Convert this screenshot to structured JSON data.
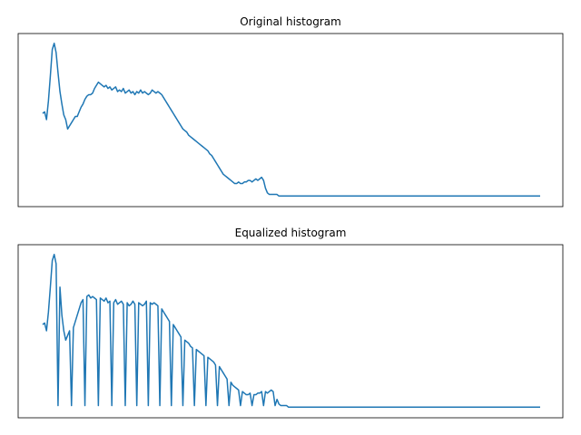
{
  "colors": {
    "line": "#1f77b4",
    "frame": "#000000",
    "background": "#ffffff"
  },
  "chart_data": [
    {
      "type": "line",
      "title": "Original histogram",
      "xlabel": "",
      "ylabel": "",
      "xlim": [
        0,
        255
      ],
      "ylim": [
        0,
        1.0
      ],
      "grid": false,
      "axes_ticks": false,
      "x_step": 4,
      "series": [
        {
          "values": [
            0.54,
            0.55,
            0.5,
            0.62,
            0.78,
            0.95,
            0.99,
            0.93,
            0.8,
            0.68,
            0.6,
            0.53,
            0.5,
            0.44,
            0.46,
            0.48,
            0.5,
            0.52,
            0.52,
            0.55,
            0.58,
            0.6,
            0.63,
            0.65,
            0.66,
            0.66,
            0.67,
            0.7,
            0.72,
            0.74,
            0.73,
            0.72,
            0.71,
            0.72,
            0.7,
            0.71,
            0.69,
            0.7,
            0.71,
            0.68,
            0.69,
            0.68,
            0.7,
            0.67,
            0.68,
            0.69,
            0.67,
            0.68,
            0.66,
            0.68,
            0.67,
            0.69,
            0.67,
            0.68,
            0.67,
            0.66,
            0.67,
            0.69,
            0.68,
            0.67,
            0.68,
            0.67,
            0.66,
            0.64,
            0.62,
            0.6,
            0.58,
            0.56,
            0.54,
            0.52,
            0.5,
            0.48,
            0.46,
            0.44,
            0.43,
            0.42,
            0.4,
            0.39,
            0.38,
            0.37,
            0.36,
            0.35,
            0.34,
            0.33,
            0.32,
            0.31,
            0.3,
            0.28,
            0.27,
            0.25,
            0.23,
            0.21,
            0.19,
            0.17,
            0.15,
            0.14,
            0.13,
            0.12,
            0.11,
            0.1,
            0.09,
            0.09,
            0.1,
            0.09,
            0.09,
            0.1,
            0.1,
            0.11,
            0.11,
            0.1,
            0.11,
            0.12,
            0.11,
            0.12,
            0.13,
            0.11,
            0.06,
            0.03,
            0.02,
            0.02,
            0.02,
            0.02,
            0.02,
            0.01,
            0.01,
            0.01,
            0.01,
            0.01,
            0.01,
            0.01,
            0.01,
            0.01,
            0.01,
            0.01,
            0.01,
            0.01,
            0.01,
            0.01,
            0.01,
            0.01,
            0.01,
            0.01,
            0.01,
            0.01,
            0.01,
            0.01,
            0.01,
            0.01,
            0.01,
            0.01,
            0.01,
            0.01,
            0.01,
            0.01,
            0.01,
            0.01,
            0.01,
            0.01,
            0.01,
            0.01,
            0.01,
            0.01,
            0.01,
            0.01,
            0.01,
            0.01,
            0.01,
            0.01,
            0.01,
            0.01,
            0.01,
            0.01,
            0.01,
            0.01,
            0.01,
            0.01,
            0.01,
            0.01,
            0.01,
            0.01,
            0.01,
            0.01,
            0.01,
            0.01,
            0.01,
            0.01,
            0.01,
            0.01,
            0.01,
            0.01,
            0.01,
            0.01,
            0.01,
            0.01,
            0.01,
            0.01,
            0.01,
            0.01,
            0.01,
            0.01,
            0.01,
            0.01,
            0.01,
            0.01,
            0.01,
            0.01,
            0.01,
            0.01,
            0.01,
            0.01,
            0.01,
            0.01,
            0.01,
            0.01,
            0.01,
            0.01,
            0.01,
            0.01,
            0.01,
            0.01,
            0.01,
            0.01,
            0.01,
            0.01,
            0.01,
            0.01,
            0.01,
            0.01,
            0.01,
            0.01,
            0.01,
            0.01,
            0.01,
            0.01,
            0.01,
            0.01,
            0.01,
            0.01,
            0.01,
            0.01,
            0.01,
            0.01,
            0.01,
            0.01,
            0.01,
            0.01,
            0.01,
            0.01,
            0.01,
            0.01,
            0.01,
            0.01,
            0.01,
            0.01,
            0.01,
            0.01,
            0.01,
            0.01,
            0.01,
            0.01
          ]
        }
      ]
    },
    {
      "type": "line",
      "title": "Equalized histogram",
      "xlabel": "",
      "ylabel": "",
      "xlim": [
        0,
        255
      ],
      "ylim": [
        0,
        1.0
      ],
      "grid": false,
      "axes_ticks": false,
      "x_step": 4,
      "series": [
        {
          "values": [
            0.54,
            0.55,
            0.5,
            0.62,
            0.78,
            0.95,
            0.99,
            0.93,
            0.02,
            0.78,
            0.6,
            0.5,
            0.44,
            0.47,
            0.5,
            0.02,
            0.52,
            0.56,
            0.6,
            0.64,
            0.68,
            0.7,
            0.02,
            0.72,
            0.73,
            0.71,
            0.72,
            0.71,
            0.7,
            0.02,
            0.71,
            0.7,
            0.69,
            0.71,
            0.68,
            0.69,
            0.02,
            0.68,
            0.7,
            0.67,
            0.68,
            0.69,
            0.67,
            0.02,
            0.68,
            0.66,
            0.67,
            0.69,
            0.67,
            0.02,
            0.68,
            0.67,
            0.66,
            0.67,
            0.69,
            0.02,
            0.68,
            0.67,
            0.68,
            0.67,
            0.66,
            0.02,
            0.64,
            0.62,
            0.6,
            0.58,
            0.56,
            0.02,
            0.54,
            0.52,
            0.5,
            0.48,
            0.46,
            0.02,
            0.44,
            0.43,
            0.42,
            0.4,
            0.39,
            0.02,
            0.38,
            0.37,
            0.36,
            0.35,
            0.34,
            0.02,
            0.33,
            0.32,
            0.31,
            0.3,
            0.28,
            0.02,
            0.27,
            0.25,
            0.23,
            0.21,
            0.19,
            0.02,
            0.17,
            0.15,
            0.14,
            0.13,
            0.12,
            0.02,
            0.11,
            0.1,
            0.09,
            0.09,
            0.1,
            0.02,
            0.09,
            0.09,
            0.1,
            0.1,
            0.11,
            0.02,
            0.11,
            0.1,
            0.11,
            0.12,
            0.11,
            0.02,
            0.06,
            0.03,
            0.02,
            0.02,
            0.02,
            0.02,
            0.01,
            0.01,
            0.01,
            0.01,
            0.01,
            0.01,
            0.01,
            0.01,
            0.01,
            0.01,
            0.01,
            0.01,
            0.01,
            0.01,
            0.01,
            0.01,
            0.01,
            0.01,
            0.01,
            0.01,
            0.01,
            0.01,
            0.01,
            0.01,
            0.01,
            0.01,
            0.01,
            0.01,
            0.01,
            0.01,
            0.01,
            0.01,
            0.01,
            0.01,
            0.01,
            0.01,
            0.01,
            0.01,
            0.01,
            0.01,
            0.01,
            0.01,
            0.01,
            0.01,
            0.01,
            0.01,
            0.01,
            0.01,
            0.01,
            0.01,
            0.01,
            0.01,
            0.01,
            0.01,
            0.01,
            0.01,
            0.01,
            0.01,
            0.01,
            0.01,
            0.01,
            0.01,
            0.01,
            0.01,
            0.01,
            0.01,
            0.01,
            0.01,
            0.01,
            0.01,
            0.01,
            0.01,
            0.01,
            0.01,
            0.01,
            0.01,
            0.01,
            0.01,
            0.01,
            0.01,
            0.01,
            0.01,
            0.01,
            0.01,
            0.01,
            0.01,
            0.01,
            0.01,
            0.01,
            0.01,
            0.01,
            0.01,
            0.01,
            0.01,
            0.01,
            0.01,
            0.01,
            0.01,
            0.01,
            0.01,
            0.01,
            0.01,
            0.01,
            0.01,
            0.01,
            0.01,
            0.01,
            0.01,
            0.01,
            0.01,
            0.01,
            0.01,
            0.01,
            0.01,
            0.01,
            0.01,
            0.01,
            0.01,
            0.01,
            0.01,
            0.01,
            0.01,
            0.01,
            0.01,
            0.01,
            0.01,
            0.01,
            0.01,
            0.01,
            0.01,
            0.01,
            0.01
          ]
        }
      ]
    }
  ]
}
